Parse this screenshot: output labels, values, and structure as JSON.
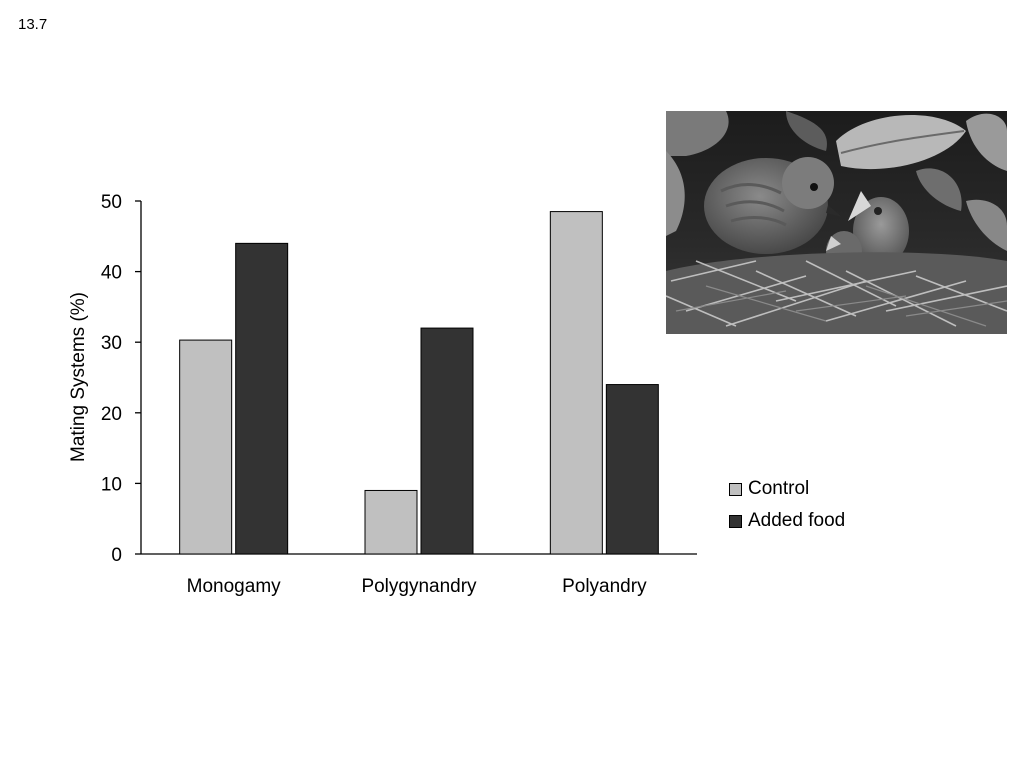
{
  "figure_number": "13.7",
  "photo": {
    "subject": "dunnock-feeding-chicks-in-nest"
  },
  "chart_data": {
    "type": "bar",
    "title": "",
    "xlabel": "",
    "ylabel": "Mating Systems (%)",
    "categories": [
      "Monogamy",
      "Polygynandry",
      "Polyandry"
    ],
    "series": [
      {
        "name": "Control",
        "values": [
          30.3,
          9.0,
          48.5
        ],
        "color": "#c0c0c0"
      },
      {
        "name": "Added food",
        "values": [
          44.0,
          32.0,
          24.0
        ],
        "color": "#333333"
      }
    ],
    "ylim": [
      0,
      50
    ],
    "yticks": [
      0,
      10,
      20,
      30,
      40,
      50
    ],
    "grid": false,
    "legend_position": "right"
  }
}
